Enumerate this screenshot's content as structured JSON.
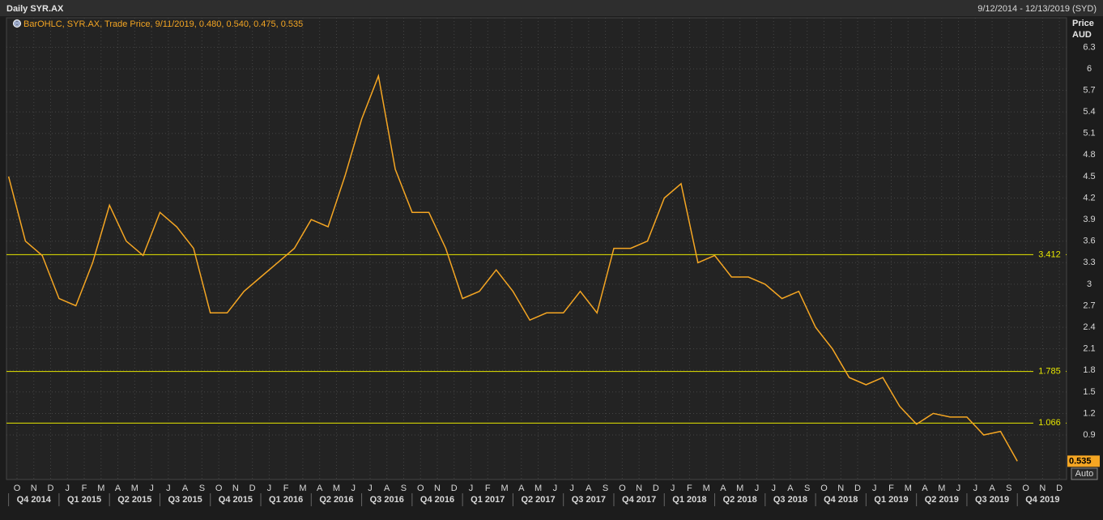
{
  "header": {
    "title": "Daily SYR.AX",
    "range": "9/12/2014 - 12/13/2019 (SYD)"
  },
  "chart_data": {
    "type": "line",
    "legend": "BarOHLC, SYR.AX, Trade Price, 9/11/2019, 0.480, 0.540, 0.475, 0.535",
    "y_axis_title": [
      "Price",
      "AUD"
    ],
    "x": [
      "2014-09",
      "2014-10",
      "2014-11",
      "2014-12",
      "2015-01",
      "2015-02",
      "2015-03",
      "2015-04",
      "2015-05",
      "2015-06",
      "2015-07",
      "2015-08",
      "2015-09",
      "2015-10",
      "2015-11",
      "2015-12",
      "2016-01",
      "2016-02",
      "2016-03",
      "2016-04",
      "2016-05",
      "2016-06",
      "2016-07",
      "2016-08",
      "2016-09",
      "2016-10",
      "2016-11",
      "2016-12",
      "2017-01",
      "2017-02",
      "2017-03",
      "2017-04",
      "2017-05",
      "2017-06",
      "2017-07",
      "2017-08",
      "2017-09",
      "2017-10",
      "2017-11",
      "2017-12",
      "2018-01",
      "2018-02",
      "2018-03",
      "2018-04",
      "2018-05",
      "2018-06",
      "2018-07",
      "2018-08",
      "2018-09",
      "2018-10",
      "2018-11",
      "2018-12",
      "2019-01",
      "2019-02",
      "2019-03",
      "2019-04",
      "2019-05",
      "2019-06",
      "2019-07",
      "2019-08",
      "2019-09"
    ],
    "series": [
      {
        "name": "SYR.AX",
        "color": "#f5a623",
        "values": [
          4.5,
          3.6,
          3.4,
          2.8,
          2.7,
          3.3,
          4.1,
          3.6,
          3.4,
          4.0,
          3.8,
          3.5,
          2.6,
          2.6,
          2.9,
          3.1,
          3.3,
          3.5,
          3.9,
          3.8,
          4.5,
          5.3,
          5.9,
          4.6,
          4.0,
          4.0,
          3.5,
          2.8,
          2.9,
          3.2,
          2.9,
          2.5,
          2.6,
          2.6,
          2.9,
          2.6,
          3.5,
          3.5,
          3.6,
          4.2,
          4.4,
          3.3,
          3.4,
          3.1,
          3.1,
          3.0,
          2.8,
          2.9,
          2.4,
          2.1,
          1.7,
          1.6,
          1.7,
          1.3,
          1.05,
          1.2,
          1.15,
          1.15,
          0.9,
          0.95,
          0.535
        ]
      }
    ],
    "last_price": 0.535,
    "levels": [
      3.412,
      1.785,
      1.066
    ],
    "level_color": "#e6e600",
    "ylim": [
      0.28,
      6.71
    ],
    "yticks": [
      0.9,
      1.2,
      1.5,
      1.8,
      2.1,
      2.4,
      2.7,
      3,
      3.3,
      3.6,
      3.9,
      4.2,
      4.5,
      4.8,
      5.1,
      5.4,
      5.7,
      6,
      6.3
    ],
    "month_labels": [
      "O",
      "N",
      "D",
      "J",
      "F",
      "M",
      "A",
      "M",
      "J",
      "J",
      "A",
      "S",
      "O",
      "N",
      "D",
      "J",
      "F",
      "M",
      "A",
      "M",
      "J",
      "J",
      "A",
      "S",
      "O",
      "N",
      "D",
      "J",
      "F",
      "M",
      "A",
      "M",
      "J",
      "J",
      "A",
      "S",
      "O",
      "N",
      "D",
      "J",
      "F",
      "M",
      "A",
      "M",
      "J",
      "J",
      "A",
      "S",
      "O",
      "N",
      "D",
      "J",
      "F",
      "M",
      "A",
      "M",
      "J",
      "J",
      "A",
      "S",
      "O",
      "N",
      "D"
    ],
    "quarter_labels": [
      "Q4 2014",
      "Q1 2015",
      "Q2 2015",
      "Q3 2015",
      "Q4 2015",
      "Q1 2016",
      "Q2 2016",
      "Q3 2016",
      "Q4 2016",
      "Q1 2017",
      "Q2 2017",
      "Q3 2017",
      "Q4 2017",
      "Q1 2018",
      "Q2 2018",
      "Q3 2018",
      "Q4 2018",
      "Q1 2019",
      "Q2 2019",
      "Q3 2019",
      "Q4 2019"
    ],
    "scale_button": "Auto",
    "grid": true
  }
}
